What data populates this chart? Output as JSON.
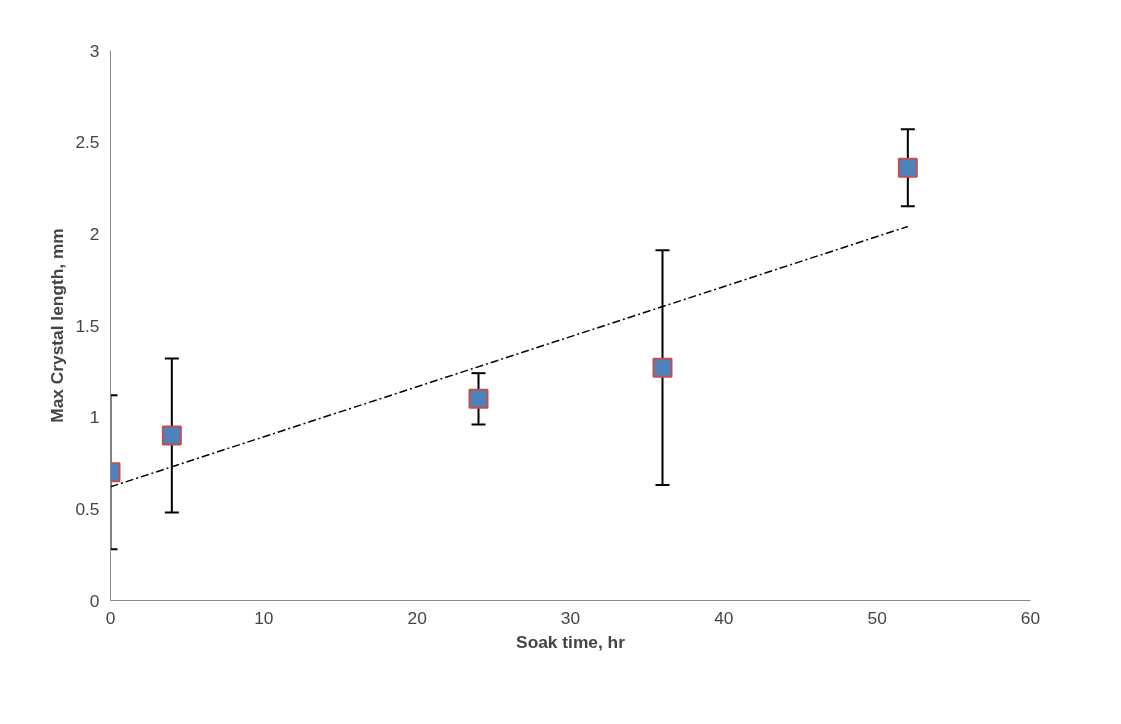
{
  "chart_data": {
    "type": "scatter",
    "xlabel": "Soak time, hr",
    "ylabel": "Max Crystal length, mm",
    "xlim": [
      0,
      60
    ],
    "xticks": [
      0,
      10,
      20,
      30,
      40,
      50,
      60
    ],
    "ylim": [
      0,
      3
    ],
    "yticks": [
      0,
      0.5,
      1,
      1.5,
      2,
      2.5,
      3
    ],
    "grid": false,
    "series": [
      {
        "color": "#4f81bd",
        "marker": "square",
        "x": [
          0,
          4,
          24,
          36,
          52
        ],
        "values": [
          0.7,
          0.9,
          1.1,
          1.27,
          2.36
        ],
        "errors": [
          0.42,
          0.42,
          0.14,
          0.64,
          0.21
        ]
      },
      {
        "type": "line",
        "color": "#000000",
        "line_style": "dashed",
        "marker": "none",
        "x": [
          0,
          52
        ],
        "values": [
          0.62,
          2.04
        ]
      }
    ]
  }
}
